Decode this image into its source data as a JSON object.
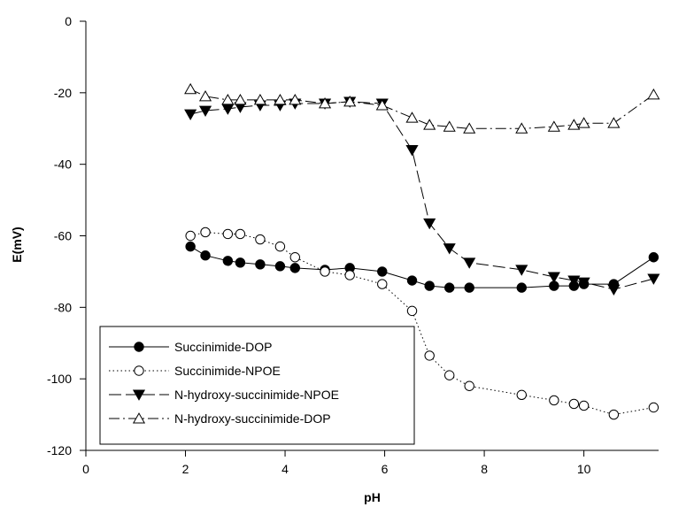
{
  "chart_data": {
    "type": "line",
    "xlabel": "pH",
    "ylabel": "E(mV)",
    "xlim": [
      0,
      11.5
    ],
    "ylim": [
      -120,
      0
    ],
    "xticks": [
      0,
      2,
      4,
      6,
      8,
      10
    ],
    "yticks": [
      0,
      -20,
      -40,
      -60,
      -80,
      -100,
      -120
    ],
    "ytick_labels": [
      "0",
      "-20",
      "-40",
      "-60",
      "-80",
      "-100",
      "-120"
    ],
    "grid": false,
    "legend_position": "bottom-left",
    "series": [
      {
        "name": "Succinimide-DOP",
        "marker": "filled-circle",
        "line": "solid",
        "x": [
          2.1,
          2.4,
          2.85,
          3.1,
          3.5,
          3.9,
          4.2,
          4.8,
          5.3,
          5.95,
          6.55,
          6.9,
          7.3,
          7.7,
          8.75,
          9.4,
          9.8,
          10.0,
          10.6,
          11.4
        ],
        "y": [
          -63,
          -65.5,
          -67,
          -67.5,
          -68,
          -68.5,
          -69,
          -69.5,
          -69,
          -70,
          -72.5,
          -74,
          -74.5,
          -74.5,
          -74.5,
          -74,
          -74,
          -73.5,
          -73.5,
          -66
        ]
      },
      {
        "name": "Succinimide-NPOE",
        "marker": "open-circle",
        "line": "dotted",
        "x": [
          2.1,
          2.4,
          2.85,
          3.1,
          3.5,
          3.9,
          4.2,
          4.8,
          5.3,
          5.95,
          6.55,
          6.9,
          7.3,
          7.7,
          8.75,
          9.4,
          9.8,
          10.0,
          10.6,
          11.4
        ],
        "y": [
          -60,
          -59,
          -59.5,
          -59.5,
          -61,
          -63,
          -66,
          -70,
          -71,
          -73.5,
          -81,
          -93.5,
          -99,
          -102,
          -104.5,
          -106,
          -107,
          -107.5,
          -110,
          -108
        ]
      },
      {
        "name": "N-hydroxy-succinimide-NPOE",
        "marker": "filled-triangle-down",
        "line": "dashed",
        "x": [
          2.1,
          2.4,
          2.85,
          3.1,
          3.5,
          3.9,
          4.2,
          4.8,
          5.3,
          5.95,
          6.55,
          6.9,
          7.3,
          7.7,
          8.75,
          9.4,
          9.8,
          10.0,
          10.6,
          11.4
        ],
        "y": [
          -26,
          -25,
          -24.5,
          -24,
          -23.5,
          -23.5,
          -23,
          -23,
          -22.5,
          -23,
          -36,
          -56.5,
          -63.5,
          -67.5,
          -69.5,
          -71.5,
          -72.5,
          -73,
          -75,
          -72
        ]
      },
      {
        "name": "N-hydroxy-succinimide-DOP",
        "marker": "open-triangle-up",
        "line": "dash-dot",
        "x": [
          2.1,
          2.4,
          2.85,
          3.1,
          3.5,
          3.9,
          4.2,
          4.8,
          5.3,
          5.95,
          6.55,
          6.9,
          7.3,
          7.7,
          8.75,
          9.4,
          9.8,
          10.0,
          10.6,
          11.4
        ],
        "y": [
          -19,
          -21,
          -22,
          -22,
          -22,
          -22,
          -22,
          -23,
          -22.5,
          -23.5,
          -27,
          -29,
          -29.5,
          -30,
          -30,
          -29.5,
          -29,
          -28.5,
          -28.5,
          -20.5
        ]
      }
    ]
  }
}
